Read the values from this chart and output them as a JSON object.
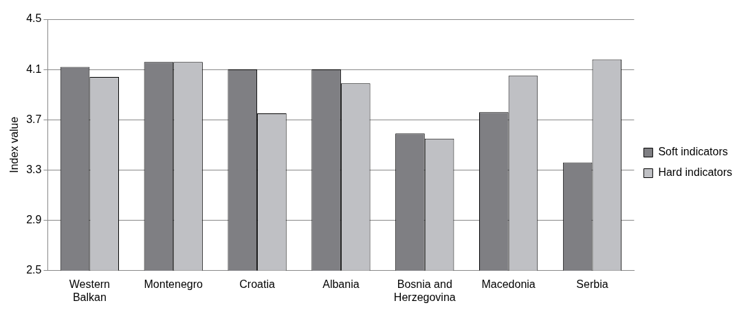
{
  "chart_data": {
    "type": "bar",
    "ylabel": "Index value",
    "categories": [
      "Western Balkan",
      "Montenegro",
      "Croatia",
      "Albania",
      "Bosnia and Herzegovina",
      "Macedonia",
      "Serbia"
    ],
    "series": [
      {
        "name": "Soft indicators",
        "color": "#7f7f83",
        "values": [
          4.12,
          4.16,
          4.1,
          4.1,
          3.59,
          3.76,
          3.36
        ]
      },
      {
        "name": "Hard indicators",
        "color": "#bfc0c4",
        "values": [
          4.04,
          4.16,
          3.75,
          3.99,
          3.55,
          4.05,
          4.18
        ]
      }
    ],
    "ylim": [
      2.5,
      4.5
    ],
    "yticks": [
      2.5,
      2.9,
      3.3,
      3.7,
      4.1,
      4.5
    ],
    "grid": "y",
    "legend": "right"
  }
}
